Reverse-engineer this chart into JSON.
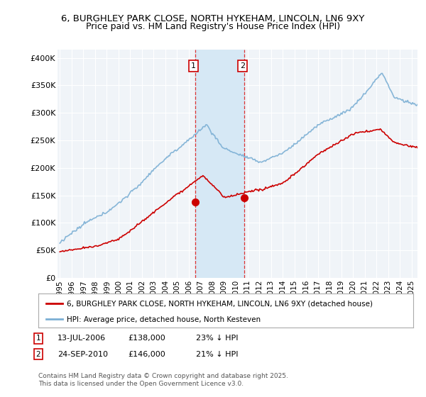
{
  "title": "6, BURGHLEY PARK CLOSE, NORTH HYKEHAM, LINCOLN, LN6 9XY",
  "subtitle": "Price paid vs. HM Land Registry's House Price Index (HPI)",
  "ylabel_ticks": [
    "£0",
    "£50K",
    "£100K",
    "£150K",
    "£200K",
    "£250K",
    "£300K",
    "£350K",
    "£400K"
  ],
  "ytick_values": [
    0,
    50000,
    100000,
    150000,
    200000,
    250000,
    300000,
    350000,
    400000
  ],
  "ylim": [
    0,
    415000
  ],
  "xlim_start": 1994.8,
  "xlim_end": 2025.5,
  "hpi_color": "#7bafd4",
  "price_color": "#cc0000",
  "marker1_date": 2006.53,
  "marker1_price": 138000,
  "marker2_date": 2010.73,
  "marker2_price": 146000,
  "legend_label_red": "6, BURGHLEY PARK CLOSE, NORTH HYKEHAM, LINCOLN, LN6 9XY (detached house)",
  "legend_label_blue": "HPI: Average price, detached house, North Kesteven",
  "annotation1_date": "13-JUL-2006",
  "annotation1_price": "£138,000",
  "annotation1_hpi": "23% ↓ HPI",
  "annotation2_date": "24-SEP-2010",
  "annotation2_price": "£146,000",
  "annotation2_hpi": "21% ↓ HPI",
  "footer": "Contains HM Land Registry data © Crown copyright and database right 2025.\nThis data is licensed under the Open Government Licence v3.0.",
  "bg_color": "#ffffff",
  "plot_bg_color": "#f0f4f8",
  "grid_color": "#ffffff",
  "shaded_region_color": "#d6e8f5",
  "vline_color": "#dd3333",
  "title_fontsize": 9.5,
  "subtitle_fontsize": 9.0,
  "tick_fontsize": 8,
  "legend_fontsize": 8
}
